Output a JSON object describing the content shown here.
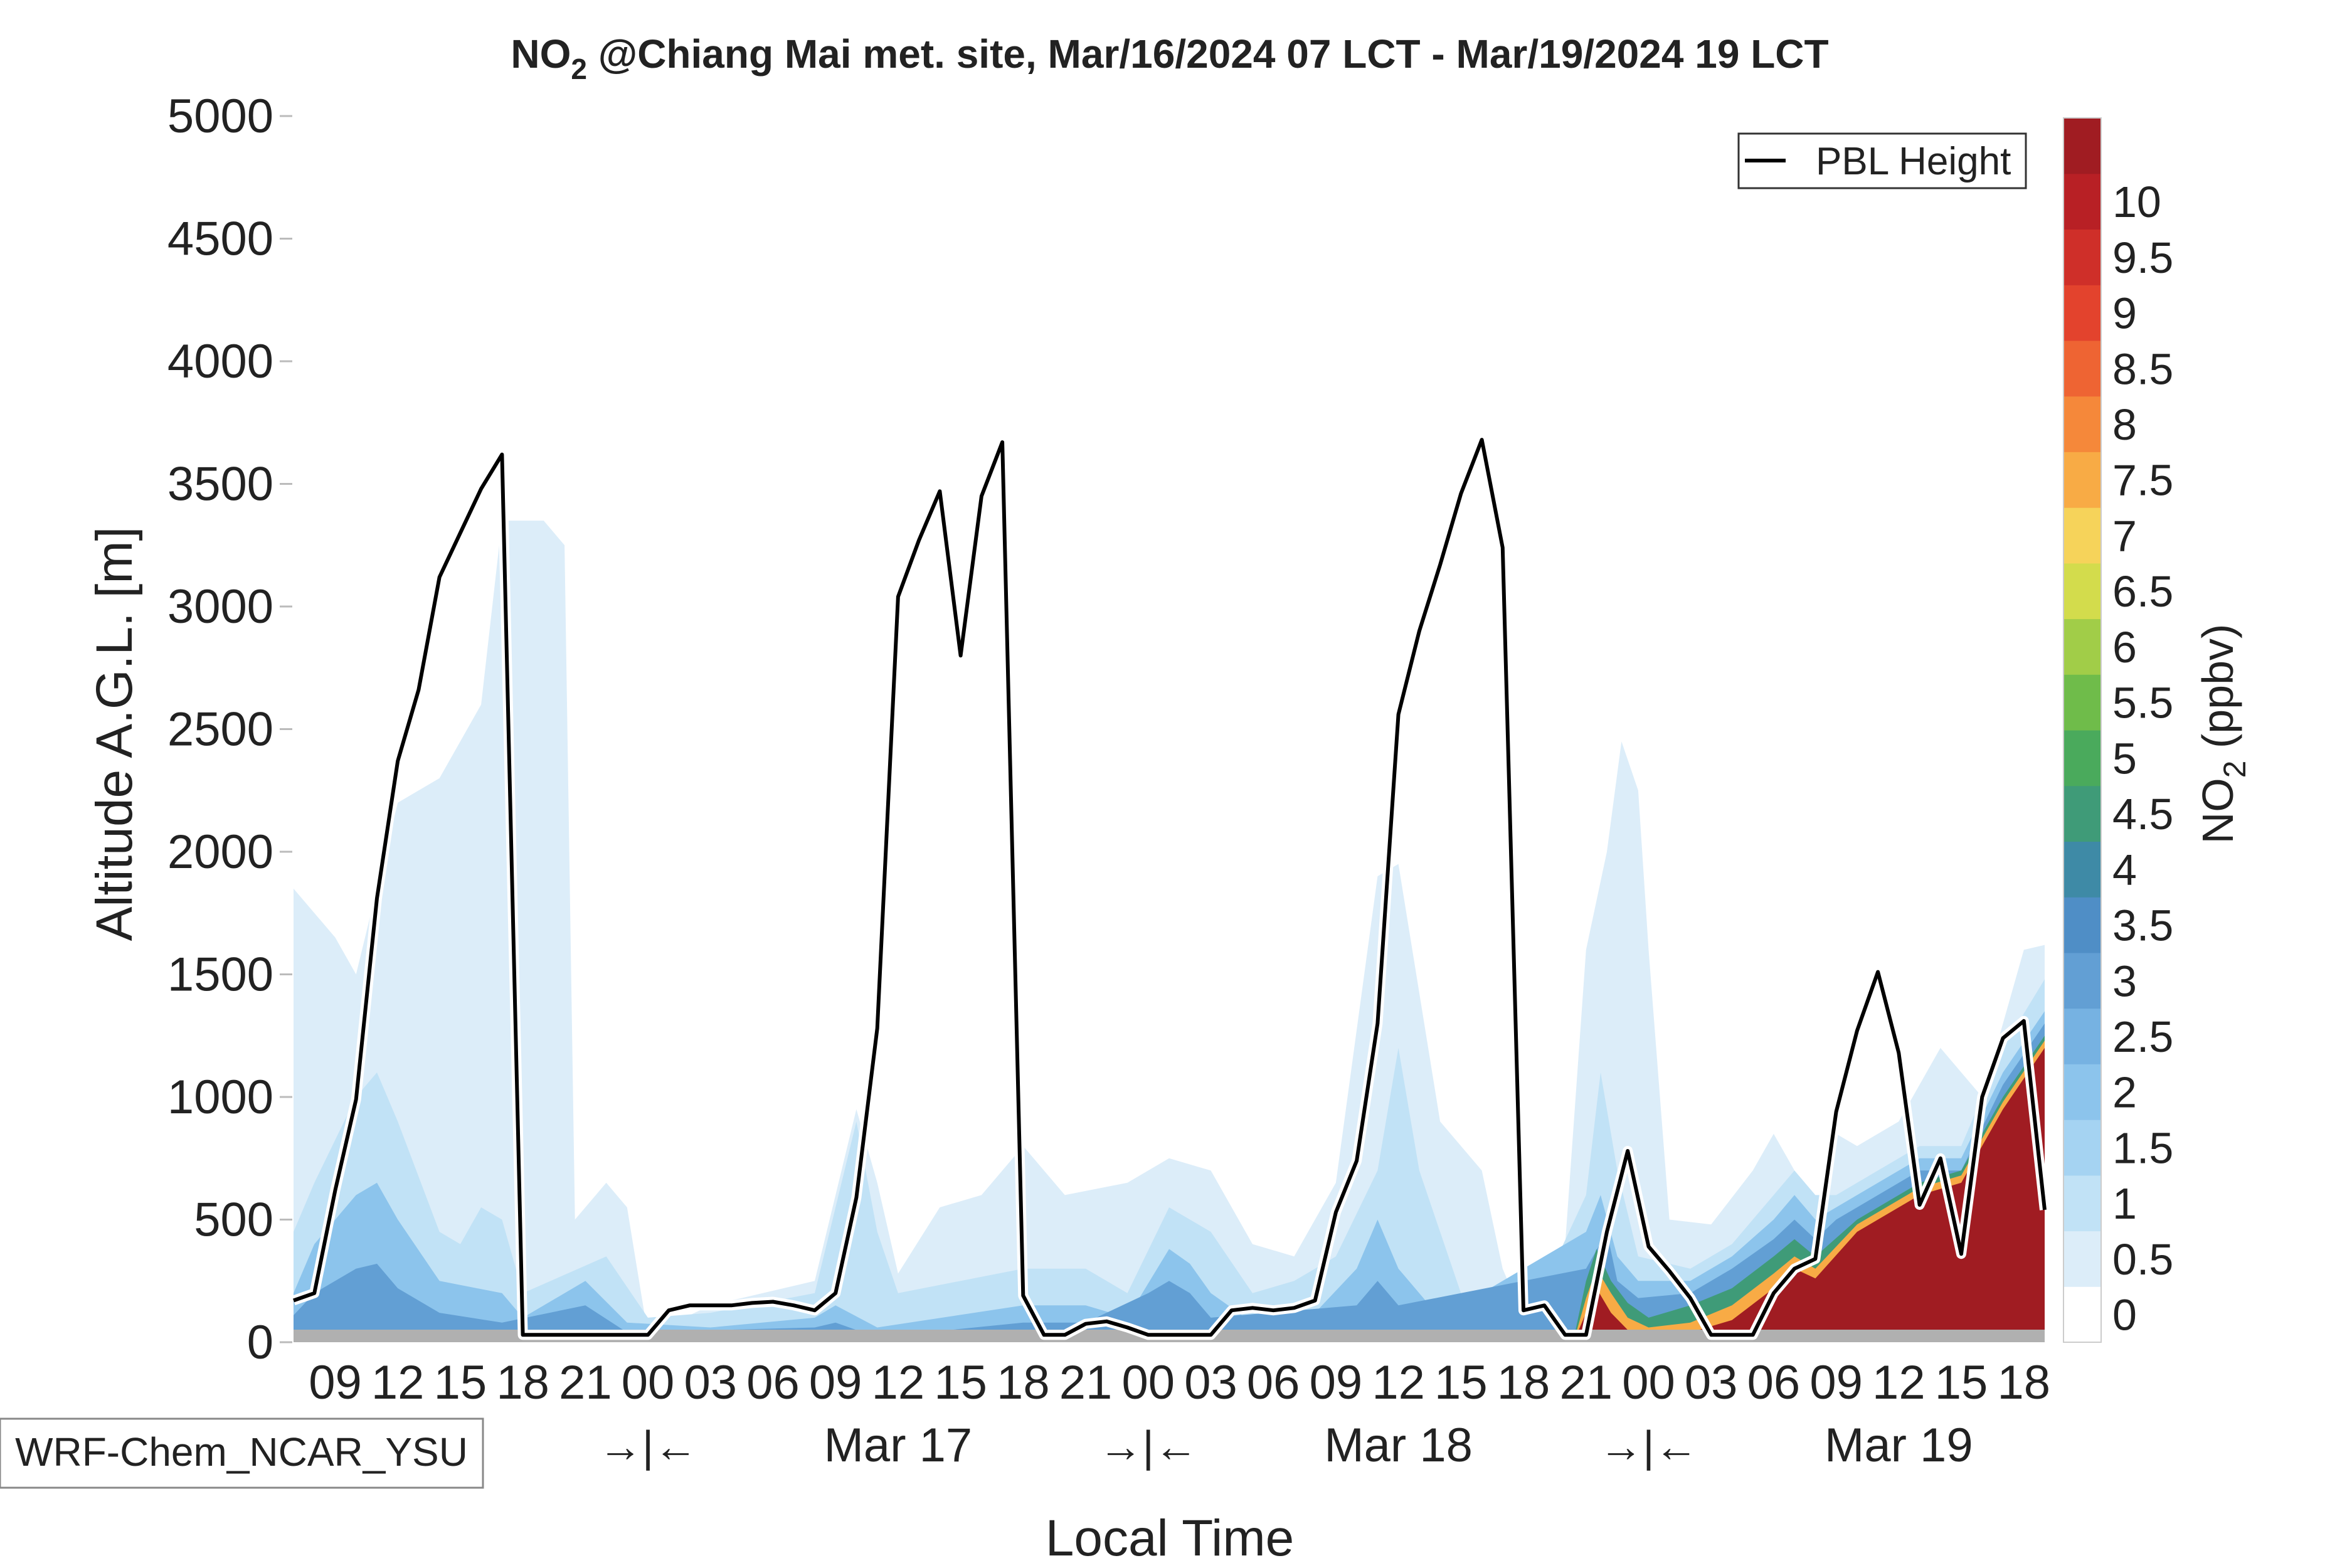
{
  "chart_data": {
    "type": "heatmap",
    "title_main": "NO",
    "title_sub": "2",
    "title_rest": " @Chiang Mai met. site, Mar/16/2024 07 LCT - Mar/19/2024 19 LCT",
    "xlabel": "Local Time",
    "ylabel": "Altitude A.G.L. [m]",
    "ylim": [
      0,
      5000
    ],
    "y_ticks": [
      "0",
      "500",
      "1000",
      "1500",
      "2000",
      "2500",
      "3000",
      "3500",
      "4000",
      "4500",
      "5000"
    ],
    "x_hour_ticks": [
      "09",
      "12",
      "15",
      "18",
      "21",
      "00",
      "03",
      "06",
      "09",
      "12",
      "15",
      "18",
      "21",
      "00",
      "03",
      "06",
      "09",
      "12",
      "15",
      "18",
      "21",
      "00",
      "03",
      "06",
      "09",
      "12",
      "15",
      "18"
    ],
    "x_day_labels": [
      "Mar 17",
      "Mar 18",
      "Mar 19"
    ],
    "x_day_separator": "→|←",
    "model_label": "WRF-Chem_NCAR_YSU",
    "legend": {
      "series_name": "PBL Height",
      "placement": "top-right"
    },
    "colorbar": {
      "label_main": "NO",
      "label_sub": "2",
      "label_rest": " (ppbv)",
      "tick_labels": [
        "0",
        "0.5",
        "1",
        "1.5",
        "2",
        "2.5",
        "3",
        "3.5",
        "4",
        "4.5",
        "5",
        "5.5",
        "6",
        "6.5",
        "7",
        "7.5",
        "8",
        "8.5",
        "9",
        "9.5",
        "10"
      ],
      "colors": [
        "#ffffff",
        "#dcedf9",
        "#c1e2f6",
        "#a5d3f2",
        "#8cc4ec",
        "#76b2e2",
        "#629fd4",
        "#4f8ec6",
        "#3e8aa6",
        "#3f9b78",
        "#4aaa5c",
        "#6fbc4a",
        "#a1cd48",
        "#d3dc4c",
        "#f6d35a",
        "#f8ab45",
        "#f5883a",
        "#ee6433",
        "#e3432d",
        "#cf2f29",
        "#b82025",
        "#a01c22"
      ]
    },
    "pbl_height": {
      "x_hours": [
        0,
        1,
        2,
        3,
        4,
        5,
        6,
        7,
        8,
        9,
        10,
        11,
        12,
        13,
        14,
        15,
        16,
        17,
        18,
        19,
        20,
        21,
        22,
        23,
        24,
        25,
        26,
        27,
        28,
        29,
        30,
        31,
        32,
        33,
        34,
        35,
        36,
        37,
        38,
        39,
        40,
        41,
        42,
        43,
        44,
        45,
        46,
        47,
        48,
        49,
        50,
        51,
        52,
        53,
        54,
        55,
        56,
        57,
        58,
        59,
        60,
        61,
        62,
        63,
        64,
        65,
        66,
        67,
        68,
        69,
        70,
        71,
        72,
        73,
        74,
        75,
        76,
        77,
        78,
        79,
        80,
        81,
        82,
        83,
        84
      ],
      "values_m": [
        170,
        200,
        620,
        990,
        1810,
        2370,
        2660,
        3120,
        3300,
        3480,
        3620,
        30,
        30,
        30,
        30,
        30,
        30,
        30,
        130,
        150,
        150,
        150,
        160,
        165,
        150,
        130,
        200,
        590,
        1280,
        3040,
        3270,
        3470,
        2800,
        3450,
        3670,
        190,
        30,
        30,
        75,
        85,
        60,
        30,
        30,
        30,
        30,
        130,
        140,
        130,
        140,
        170,
        530,
        740,
        1300,
        2560,
        2900,
        3170,
        3460,
        3680,
        3240,
        130,
        150,
        30,
        30,
        450,
        780,
        390,
        290,
        180,
        30,
        30,
        30,
        200,
        300,
        340,
        940,
        1270,
        1510,
        1180,
        560,
        750,
        360,
        1000,
        1240,
        1310,
        540
      ]
    },
    "no2_layers": [
      {
        "level": 1,
        "start": 0,
        "end": 84,
        "peaks": [
          [
            0,
            1850
          ],
          [
            2,
            1650
          ],
          [
            3,
            1500
          ],
          [
            5,
            2200
          ],
          [
            7,
            2300
          ],
          [
            9,
            2600
          ],
          [
            10,
            3350
          ],
          [
            12,
            3350
          ],
          [
            13,
            3250
          ],
          [
            13.5,
            500
          ],
          [
            15,
            650
          ],
          [
            16,
            550
          ],
          [
            17,
            30
          ],
          [
            20,
            150
          ],
          [
            25,
            250
          ],
          [
            27,
            950
          ],
          [
            28,
            650
          ],
          [
            29,
            280
          ],
          [
            31,
            550
          ],
          [
            33,
            600
          ],
          [
            35,
            800
          ],
          [
            37,
            600
          ],
          [
            40,
            650
          ],
          [
            42,
            750
          ],
          [
            44,
            700
          ],
          [
            46,
            400
          ],
          [
            48,
            350
          ],
          [
            50,
            650
          ],
          [
            52,
            1900
          ],
          [
            53,
            1950
          ],
          [
            55,
            900
          ],
          [
            57,
            700
          ],
          [
            58,
            300
          ],
          [
            59,
            100
          ],
          [
            61,
            400
          ],
          [
            62,
            1600
          ],
          [
            63,
            2000
          ],
          [
            63.7,
            2450
          ],
          [
            64.5,
            2250
          ],
          [
            65,
            1600
          ],
          [
            66,
            500
          ],
          [
            68,
            480
          ],
          [
            70,
            700
          ],
          [
            71,
            850
          ],
          [
            72,
            700
          ],
          [
            73,
            500
          ],
          [
            74,
            850
          ],
          [
            75,
            800
          ],
          [
            77,
            900
          ],
          [
            79,
            1200
          ],
          [
            81,
            1000
          ],
          [
            83,
            1600
          ],
          [
            84,
            1620
          ]
        ]
      },
      {
        "level": 2,
        "start": 0,
        "end": 84,
        "peaks": [
          [
            0,
            450
          ],
          [
            1,
            650
          ],
          [
            3,
            1000
          ],
          [
            4,
            1100
          ],
          [
            5,
            900
          ],
          [
            7,
            450
          ],
          [
            8,
            400
          ],
          [
            9,
            550
          ],
          [
            10,
            500
          ],
          [
            11,
            200
          ],
          [
            15,
            350
          ],
          [
            17,
            100
          ],
          [
            20,
            120
          ],
          [
            25,
            200
          ],
          [
            27,
            900
          ],
          [
            28,
            450
          ],
          [
            29,
            200
          ],
          [
            35,
            300
          ],
          [
            38,
            300
          ],
          [
            40,
            200
          ],
          [
            42,
            550
          ],
          [
            44,
            450
          ],
          [
            46,
            200
          ],
          [
            48,
            250
          ],
          [
            50,
            350
          ],
          [
            52,
            700
          ],
          [
            53,
            1200
          ],
          [
            54,
            700
          ],
          [
            56,
            200
          ],
          [
            59,
            50
          ],
          [
            62,
            600
          ],
          [
            62.7,
            1100
          ],
          [
            63.5,
            700
          ],
          [
            64.5,
            350
          ],
          [
            67,
            300
          ],
          [
            69,
            400
          ],
          [
            71,
            600
          ],
          [
            72,
            700
          ],
          [
            73,
            600
          ],
          [
            74,
            600
          ],
          [
            76,
            700
          ],
          [
            78,
            800
          ],
          [
            80,
            800
          ],
          [
            82,
            1200
          ],
          [
            84,
            1480
          ]
        ]
      },
      {
        "level": 4,
        "start": 0,
        "end": 84,
        "peaks": [
          [
            0,
            200
          ],
          [
            1,
            400
          ],
          [
            3,
            600
          ],
          [
            4,
            650
          ],
          [
            5,
            500
          ],
          [
            7,
            250
          ],
          [
            10,
            200
          ],
          [
            11,
            100
          ],
          [
            14,
            250
          ],
          [
            16,
            80
          ],
          [
            20,
            60
          ],
          [
            25,
            100
          ],
          [
            26,
            150
          ],
          [
            28,
            60
          ],
          [
            35,
            150
          ],
          [
            38,
            150
          ],
          [
            40,
            100
          ],
          [
            42,
            380
          ],
          [
            43,
            320
          ],
          [
            44,
            200
          ],
          [
            46,
            80
          ],
          [
            49,
            120
          ],
          [
            51,
            300
          ],
          [
            52,
            500
          ],
          [
            53,
            300
          ],
          [
            55,
            100
          ],
          [
            62,
            450
          ],
          [
            62.7,
            600
          ],
          [
            63.5,
            350
          ],
          [
            64.5,
            250
          ],
          [
            67,
            250
          ],
          [
            69,
            350
          ],
          [
            71,
            500
          ],
          [
            72,
            600
          ],
          [
            73,
            500
          ],
          [
            74,
            550
          ],
          [
            75,
            600
          ],
          [
            78,
            750
          ],
          [
            80,
            750
          ],
          [
            82,
            1100
          ],
          [
            84,
            1350
          ]
        ]
      },
      {
        "level": 6,
        "start": 0,
        "end": 84,
        "peaks": [
          [
            0,
            110
          ],
          [
            1,
            200
          ],
          [
            3,
            300
          ],
          [
            4,
            320
          ],
          [
            5,
            220
          ],
          [
            7,
            120
          ],
          [
            10,
            80
          ],
          [
            14,
            150
          ],
          [
            16,
            40
          ],
          [
            25,
            60
          ],
          [
            26,
            80
          ],
          [
            28,
            20
          ],
          [
            35,
            80
          ],
          [
            38,
            80
          ],
          [
            41,
            200
          ],
          [
            42,
            250
          ],
          [
            43,
            200
          ],
          [
            44,
            100
          ],
          [
            51,
            150
          ],
          [
            52,
            250
          ],
          [
            53,
            150
          ],
          [
            62,
            300
          ],
          [
            63,
            450
          ],
          [
            63.5,
            250
          ],
          [
            64.5,
            180
          ],
          [
            67,
            200
          ],
          [
            69,
            300
          ],
          [
            71,
            420
          ],
          [
            72,
            500
          ],
          [
            73,
            420
          ],
          [
            74,
            500
          ],
          [
            75,
            550
          ],
          [
            78,
            700
          ],
          [
            80,
            700
          ],
          [
            82,
            1050
          ],
          [
            84,
            1300
          ]
        ]
      },
      {
        "level": 9,
        "start": 61,
        "end": 84,
        "peaks": [
          [
            61.5,
            50
          ],
          [
            62,
            250
          ],
          [
            62.5,
            380
          ],
          [
            63.2,
            250
          ],
          [
            64,
            160
          ],
          [
            65,
            100
          ],
          [
            67,
            150
          ],
          [
            69,
            220
          ],
          [
            71,
            350
          ],
          [
            72,
            420
          ],
          [
            73,
            350
          ],
          [
            75,
            500
          ],
          [
            78,
            650
          ],
          [
            80,
            700
          ],
          [
            82,
            1000
          ],
          [
            84,
            1250
          ]
        ]
      },
      {
        "level": 15,
        "start": 61,
        "end": 84,
        "peaks": [
          [
            61.5,
            30
          ],
          [
            62,
            180
          ],
          [
            62.5,
            300
          ],
          [
            63.2,
            200
          ],
          [
            64,
            100
          ],
          [
            65,
            60
          ],
          [
            67,
            80
          ],
          [
            69,
            150
          ],
          [
            71,
            280
          ],
          [
            72,
            350
          ],
          [
            73,
            300
          ],
          [
            75,
            480
          ],
          [
            78,
            630
          ],
          [
            80,
            680
          ],
          [
            82,
            980
          ],
          [
            84,
            1230
          ]
        ]
      },
      {
        "level": 21,
        "start": 61,
        "end": 84,
        "peaks": [
          [
            61.5,
            20
          ],
          [
            62,
            120
          ],
          [
            62.5,
            220
          ],
          [
            63.2,
            120
          ],
          [
            64,
            50
          ],
          [
            65,
            30
          ],
          [
            67,
            40
          ],
          [
            69,
            90
          ],
          [
            71,
            220
          ],
          [
            72,
            300
          ],
          [
            73,
            260
          ],
          [
            75,
            450
          ],
          [
            78,
            600
          ],
          [
            80,
            650
          ],
          [
            82,
            950
          ],
          [
            84,
            1200
          ]
        ]
      }
    ]
  }
}
